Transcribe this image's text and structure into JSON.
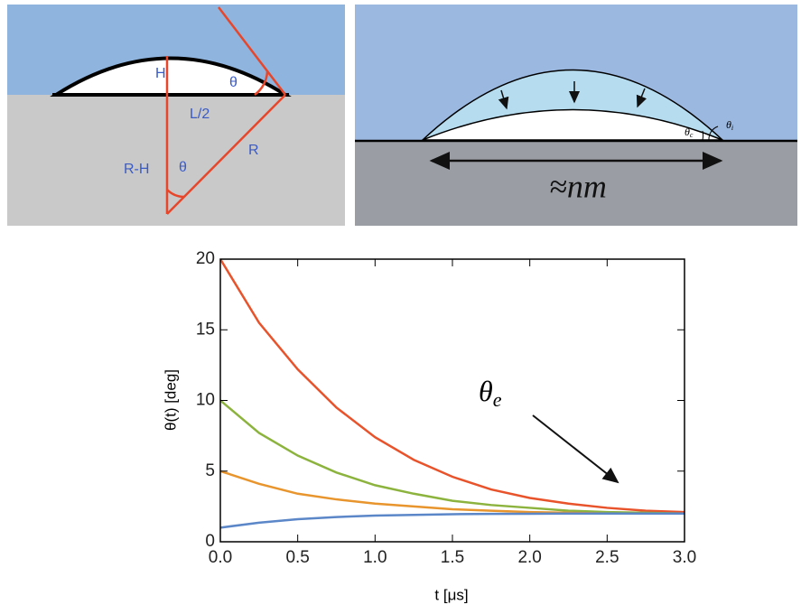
{
  "diagram_left": {
    "labels": [
      "H",
      "θ",
      "L/2",
      "R-H",
      "θ",
      "R"
    ]
  },
  "diagram_right": {
    "angle_c": {
      "symbol": "θ",
      "subscript": "c"
    },
    "angle_i": {
      "symbol": "θ",
      "subscript": "i"
    },
    "scale": "≈nm"
  },
  "chart_data": {
    "type": "line",
    "x_label": "t [μs]",
    "y_label": "θ(t) [deg]",
    "annotation": {
      "symbol": "θ",
      "subscript": "e"
    },
    "x": [
      0,
      0.25,
      0.5,
      0.75,
      1.0,
      1.25,
      1.5,
      1.75,
      2.0,
      2.25,
      2.5,
      2.75,
      3.0
    ],
    "series": [
      {
        "color": "#e8532b",
        "values": [
          20,
          15.5,
          12.2,
          9.5,
          7.4,
          5.8,
          4.6,
          3.7,
          3.1,
          2.7,
          2.4,
          2.2,
          2.1
        ]
      },
      {
        "color": "#8cb33d",
        "values": [
          10,
          7.7,
          6.1,
          4.9,
          4.0,
          3.4,
          2.9,
          2.6,
          2.4,
          2.2,
          2.1,
          2.05,
          2.0
        ]
      },
      {
        "color": "#e8952e",
        "values": [
          5,
          4.1,
          3.4,
          3.0,
          2.7,
          2.5,
          2.3,
          2.2,
          2.1,
          2.05,
          2.0,
          2.0,
          2.0
        ]
      },
      {
        "color": "#5b86c8",
        "values": [
          1,
          1.35,
          1.6,
          1.75,
          1.85,
          1.9,
          1.95,
          1.97,
          1.98,
          2.0,
          2.0,
          2.0,
          2.0
        ]
      }
    ],
    "xlim": [
      0,
      3
    ],
    "ylim": [
      0,
      20
    ],
    "xticks": [
      {
        "value": 0,
        "label": "0.0"
      },
      {
        "value": 0.5,
        "label": "0.5"
      },
      {
        "value": 1,
        "label": "1.0"
      },
      {
        "value": 1.5,
        "label": "1.5"
      },
      {
        "value": 2,
        "label": "2.0"
      },
      {
        "value": 2.5,
        "label": "2.5"
      },
      {
        "value": 3,
        "label": "3.0"
      }
    ],
    "yticks": [
      0,
      5,
      10,
      15,
      20
    ]
  }
}
